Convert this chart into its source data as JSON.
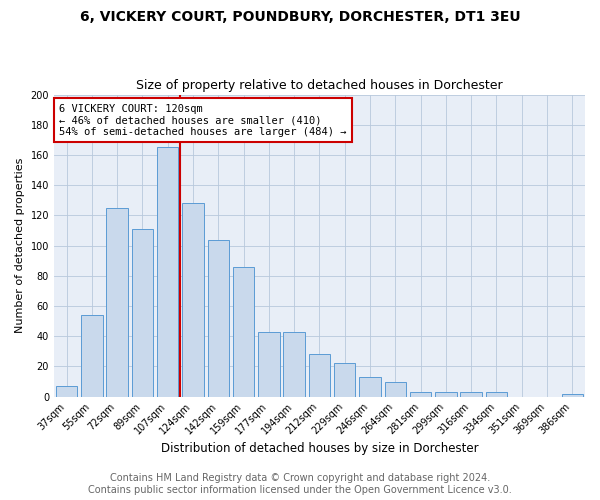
{
  "title": "6, VICKERY COURT, POUNDBURY, DORCHESTER, DT1 3EU",
  "subtitle": "Size of property relative to detached houses in Dorchester",
  "xlabel": "Distribution of detached houses by size in Dorchester",
  "ylabel": "Number of detached properties",
  "bar_labels": [
    "37sqm",
    "55sqm",
    "72sqm",
    "89sqm",
    "107sqm",
    "124sqm",
    "142sqm",
    "159sqm",
    "177sqm",
    "194sqm",
    "212sqm",
    "229sqm",
    "246sqm",
    "264sqm",
    "281sqm",
    "299sqm",
    "316sqm",
    "334sqm",
    "351sqm",
    "369sqm",
    "386sqm"
  ],
  "bar_values": [
    7,
    54,
    125,
    111,
    165,
    128,
    104,
    86,
    43,
    43,
    28,
    22,
    13,
    10,
    3,
    3,
    3,
    3,
    0,
    0,
    2
  ],
  "bar_color": "#c9d9ec",
  "bar_edge_color": "#5b9bd5",
  "annotation_text": "6 VICKERY COURT: 120sqm\n← 46% of detached houses are smaller (410)\n54% of semi-detached houses are larger (484) →",
  "annotation_box_color": "#ffffff",
  "annotation_box_edge": "#cc0000",
  "vline_color": "#cc0000",
  "vline_x": 4.5,
  "ylim": [
    0,
    200
  ],
  "yticks": [
    0,
    20,
    40,
    60,
    80,
    100,
    120,
    140,
    160,
    180,
    200
  ],
  "footer_line1": "Contains HM Land Registry data © Crown copyright and database right 2024.",
  "footer_line2": "Contains public sector information licensed under the Open Government Licence v3.0.",
  "bg_color": "#ffffff",
  "plot_bg_color": "#e8eef7",
  "grid_color": "#b8c8dc",
  "title_fontsize": 10,
  "subtitle_fontsize": 9,
  "xlabel_fontsize": 8.5,
  "ylabel_fontsize": 8,
  "tick_fontsize": 7,
  "annotation_fontsize": 7.5,
  "footer_fontsize": 7
}
